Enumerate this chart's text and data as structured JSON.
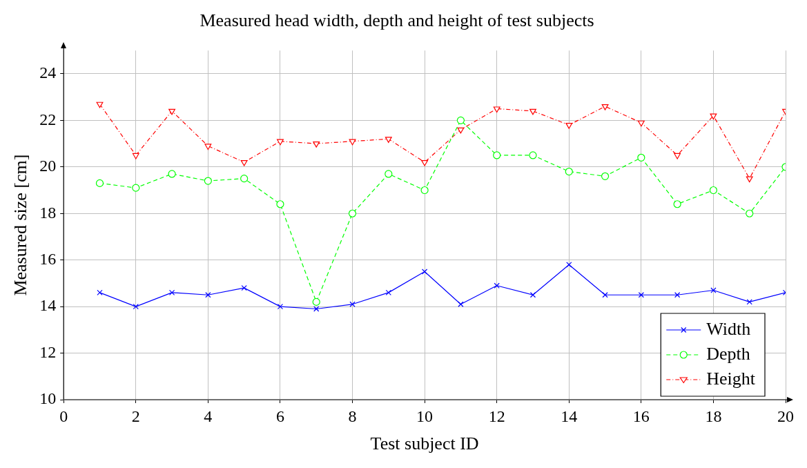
{
  "chart_data": {
    "type": "line",
    "title": "Measured head width, depth and height of test subjects",
    "xlabel": "Test subject ID",
    "ylabel": "Measured size [cm]",
    "x": [
      1,
      2,
      3,
      4,
      5,
      6,
      7,
      8,
      9,
      10,
      11,
      12,
      13,
      14,
      15,
      16,
      17,
      18,
      19,
      20
    ],
    "xlim": [
      0,
      20
    ],
    "xticks": [
      0,
      2,
      4,
      6,
      8,
      10,
      12,
      14,
      16,
      18,
      20
    ],
    "ylim": [
      10,
      25
    ],
    "yticks": [
      10,
      12,
      14,
      16,
      18,
      20,
      22,
      24
    ],
    "grid": true,
    "legend": "bottom right",
    "series": [
      {
        "name": "Width",
        "color": "#0000ff",
        "marker": "cross",
        "line_style": "solid",
        "values": [
          14.6,
          14.0,
          14.6,
          14.5,
          14.8,
          14.0,
          13.9,
          14.1,
          14.6,
          15.5,
          14.1,
          14.9,
          14.5,
          15.8,
          14.5,
          14.5,
          14.5,
          14.7,
          14.2,
          14.6
        ]
      },
      {
        "name": "Depth",
        "color": "#00ff00",
        "marker": "circle",
        "line_style": "dashed",
        "values": [
          19.3,
          19.1,
          19.7,
          19.4,
          19.5,
          18.4,
          14.2,
          18.0,
          19.7,
          19.0,
          22.0,
          20.5,
          20.5,
          19.8,
          19.6,
          20.4,
          18.4,
          19.0,
          18.0,
          20.0
        ]
      },
      {
        "name": "Height",
        "color": "#ff0000",
        "marker": "triangle",
        "line_style": "dotted",
        "values": [
          22.7,
          20.5,
          22.4,
          20.9,
          20.2,
          21.1,
          21.0,
          21.1,
          21.2,
          20.2,
          21.6,
          22.5,
          22.4,
          21.8,
          22.6,
          21.9,
          20.5,
          22.2,
          19.5,
          22.4
        ]
      }
    ]
  }
}
